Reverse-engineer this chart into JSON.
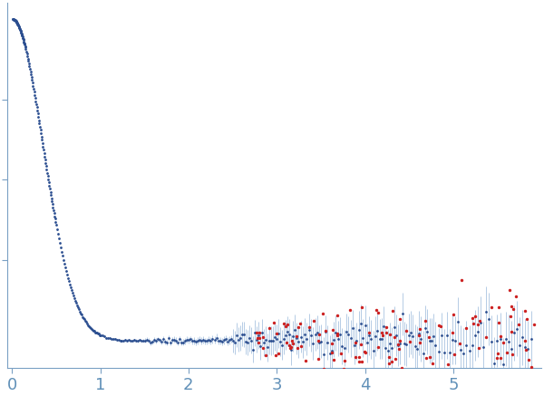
{
  "title": "",
  "xlabel": "",
  "ylabel": "",
  "xlim": [
    -0.05,
    6.0
  ],
  "bg_color": "#ffffff",
  "blue_color": "#2a4d8f",
  "red_color": "#cc2020",
  "error_color": "#aac4e0",
  "axis_color": "#7aa0c4",
  "tick_label_color": "#6090b8",
  "q_min_blue": 0.01,
  "q_max_blue": 5.88,
  "q_min_red": 2.75,
  "q_max_red": 5.95,
  "figsize": [
    6.0,
    4.37
  ],
  "dpi": 100
}
